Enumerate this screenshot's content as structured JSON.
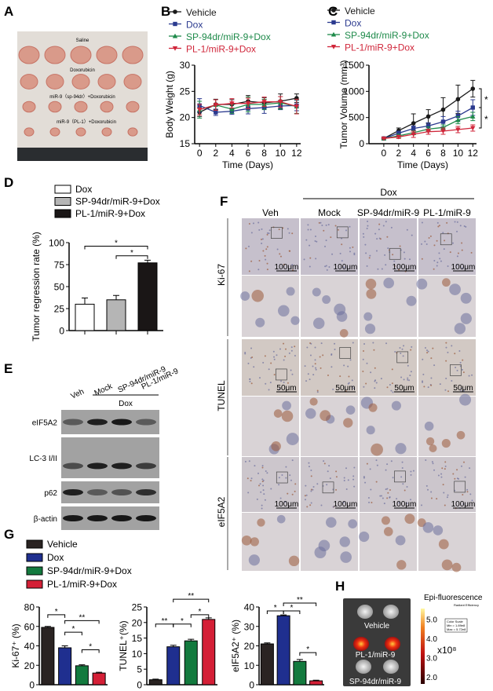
{
  "panels": {
    "A": "A",
    "B": "B",
    "C": "C",
    "D": "D",
    "E": "E",
    "F": "F",
    "G": "G",
    "H": "H"
  },
  "photo_a": {
    "labels": [
      "Saline",
      "Doxorubicin",
      "miR-9（sp-94dr）+Doxorubicin",
      "miR-9（PL-1）+Doxorubicin"
    ]
  },
  "colors": {
    "vehicle": "#1a1a1a",
    "dox": "#2b3a8f",
    "sp": "#1e8a4a",
    "pl": "#d0263a",
    "d_dox": "#ffffff",
    "d_sp": "#b5b5b5",
    "d_pl": "#1a1616",
    "g_vehicle": "#2a2322",
    "g_dox": "#1f2f8f",
    "g_sp": "#137a3e",
    "g_pl": "#d41f36"
  },
  "chart_data": [
    {
      "id": "B",
      "type": "line",
      "xlabel": "Time (Days)",
      "ylabel": "Body Weight (g)",
      "xlim": [
        0,
        12
      ],
      "ylim": [
        15,
        30
      ],
      "xticks": [
        "0",
        "2",
        "4",
        "6",
        "8",
        "10",
        "12"
      ],
      "yticks": [
        "15",
        "20",
        "25",
        "30"
      ],
      "x": [
        0,
        2,
        4,
        6,
        8,
        10,
        12
      ],
      "series": [
        {
          "name": "Vehicle",
          "marker": "circle",
          "values": [
            21,
            22.5,
            22.5,
            23.1,
            22.8,
            23.1,
            23.7
          ],
          "error": [
            0.8,
            1,
            0.9,
            1.1,
            1,
            1.4,
            0.8
          ]
        },
        {
          "name": "Dox",
          "marker": "square",
          "values": [
            22.3,
            21,
            21.2,
            21.7,
            21.9,
            22.2,
            22.3
          ],
          "error": [
            1.3,
            0.6,
            0.6,
            1,
            1.1,
            0.7,
            1
          ]
        },
        {
          "name": "SP-94dr/miR-9+Dox",
          "marker": "triangle-up",
          "values": [
            21.5,
            22.4,
            21.6,
            22.5,
            22.5,
            22.8,
            22.1
          ],
          "error": [
            1.6,
            1,
            0.8,
            1.4,
            1,
            1.2,
            1.3
          ]
        },
        {
          "name": "PL-1/miR-9+Dox",
          "marker": "triangle-down",
          "values": [
            21.5,
            22.4,
            22.7,
            22.7,
            23,
            23,
            22.1
          ],
          "error": [
            1,
            1,
            0.9,
            1,
            0.9,
            1,
            1.4
          ]
        }
      ]
    },
    {
      "id": "C",
      "type": "line",
      "xlabel": "Time (Days)",
      "ylabel": "Tumor Volume (mm³)",
      "xlim": [
        0,
        12
      ],
      "ylim": [
        0,
        1500
      ],
      "xticks": [
        "0",
        "2",
        "4",
        "6",
        "8",
        "10",
        "12"
      ],
      "yticks": [
        "0",
        "500",
        "1000",
        "1500"
      ],
      "x": [
        0,
        2,
        4,
        6,
        8,
        10,
        12
      ],
      "series": [
        {
          "name": "Vehicle",
          "marker": "circle",
          "values": [
            100,
            250,
            390,
            520,
            650,
            850,
            1050
          ],
          "error": [
            10,
            50,
            180,
            130,
            230,
            270,
            160
          ]
        },
        {
          "name": "Dox",
          "marker": "square",
          "values": [
            100,
            200,
            290,
            340,
            420,
            530,
            690
          ],
          "error": [
            10,
            40,
            50,
            60,
            100,
            90,
            150
          ]
        },
        {
          "name": "SP-94dr/miR-9+Dox",
          "marker": "triangle-up",
          "values": [
            100,
            150,
            210,
            280,
            310,
            450,
            520
          ],
          "error": [
            10,
            30,
            40,
            40,
            50,
            70,
            80
          ]
        },
        {
          "name": "PL-1/miR-9+Dox",
          "marker": "triangle-down",
          "values": [
            100,
            130,
            180,
            230,
            240,
            270,
            300
          ],
          "error": [
            10,
            30,
            60,
            50,
            60,
            60,
            60
          ]
        }
      ],
      "annotations": [
        {
          "between": [
            "Vehicle",
            "Dox"
          ],
          "text": "*"
        },
        {
          "between": [
            "Dox",
            "PL-1/miR-9+Dox"
          ],
          "text": "*"
        }
      ]
    },
    {
      "id": "D",
      "type": "bar",
      "ylabel": "Tumor regression rate (%)",
      "ylim": [
        0,
        100
      ],
      "yticks": [
        "0",
        "25",
        "50",
        "75",
        "100"
      ],
      "categories": [
        "Dox",
        "SP-94dr/miR-9+Dox",
        "PL-1/miR-9+Dox"
      ],
      "values": [
        30,
        35,
        77
      ],
      "error": [
        7,
        5,
        3
      ],
      "annotations": [
        {
          "between": [
            0,
            2
          ],
          "text": "*"
        },
        {
          "between": [
            1,
            2
          ],
          "text": "*"
        }
      ]
    },
    {
      "id": "G1",
      "type": "bar",
      "ylabel": "Ki-67⁺ (%)",
      "ylim": [
        0,
        80
      ],
      "yticks": [
        "0",
        "20",
        "40",
        "60",
        "80"
      ],
      "categories": [
        "Vehicle",
        "Dox",
        "SP-94dr/miR-9+Dox",
        "PL-1/miR-9+Dox"
      ],
      "values": [
        59,
        38,
        19.5,
        12
      ],
      "error": [
        1,
        2,
        1,
        0.8
      ],
      "annotations": [
        {
          "between": [
            0,
            1
          ],
          "text": "*"
        },
        {
          "between": [
            1,
            3
          ],
          "text": "**"
        },
        {
          "between": [
            1,
            2
          ],
          "text": "*"
        },
        {
          "between": [
            2,
            3
          ],
          "text": "*"
        }
      ]
    },
    {
      "id": "G2",
      "type": "bar",
      "ylabel": "TUNEL⁺(%)",
      "ylim": [
        0,
        25
      ],
      "yticks": [
        "0",
        "5",
        "10",
        "15",
        "20",
        "25"
      ],
      "categories": [
        "Vehicle",
        "Dox",
        "SP-94dr/miR-9+Dox",
        "PL-1/miR-9+Dox"
      ],
      "values": [
        1.6,
        12.2,
        14.1,
        21
      ],
      "error": [
        0.2,
        0.5,
        0.5,
        0.5
      ],
      "annotations": [
        {
          "between": [
            0,
            1
          ],
          "text": "**"
        },
        {
          "between": [
            1,
            2
          ],
          "text": "*"
        },
        {
          "between": [
            1,
            3
          ],
          "text": "**"
        },
        {
          "between": [
            2,
            3
          ],
          "text": "*"
        }
      ]
    },
    {
      "id": "G3",
      "type": "bar",
      "ylabel": "eIF5A2⁺ (%)",
      "ylim": [
        0,
        40
      ],
      "yticks": [
        "0",
        "10",
        "20",
        "30",
        "40"
      ],
      "categories": [
        "Vehicle",
        "Dox",
        "SP-94dr/miR-9+Dox",
        "PL-1/miR-9+Dox"
      ],
      "values": [
        21,
        35.5,
        12,
        2
      ],
      "error": [
        0.5,
        0.4,
        1,
        0.3
      ],
      "annotations": [
        {
          "between": [
            0,
            1
          ],
          "text": "*"
        },
        {
          "between": [
            1,
            2
          ],
          "text": "*"
        },
        {
          "between": [
            1,
            3
          ],
          "text": "**"
        },
        {
          "between": [
            2,
            3
          ],
          "text": "*"
        }
      ]
    }
  ],
  "blot_e": {
    "lanes": [
      "Veh",
      "Mock",
      "SP-94dr/miR-9",
      "PL-1/miR-9"
    ],
    "group": "Dox",
    "rows": [
      "eIF5A2",
      "LC-3 I/II",
      "p62",
      "β-actin"
    ]
  },
  "ihc_f": {
    "columns": [
      "Veh",
      "Mock",
      "SP-94dr/miR-9",
      "PL-1/miR-9"
    ],
    "group": "Dox",
    "rows": [
      "Ki-67",
      "TUNEL",
      "eIF5A2"
    ],
    "scale_bars": [
      "100μm",
      "50μm",
      "100μm"
    ]
  },
  "imaging_h": {
    "title": "Epi-fluorescence",
    "labels": [
      "Vehicle",
      "PL-1/miR-9",
      "SP-94dr/miR-9"
    ],
    "colorbar_ticks": [
      "2.0",
      "3.0",
      "4.0",
      "5.0"
    ],
    "multiplier": "x10⁸",
    "unit": "Radiant Efficiency",
    "scale_box": [
      "Color Scale",
      "Min = 1.89e8",
      "Max = 5.72e8"
    ]
  }
}
